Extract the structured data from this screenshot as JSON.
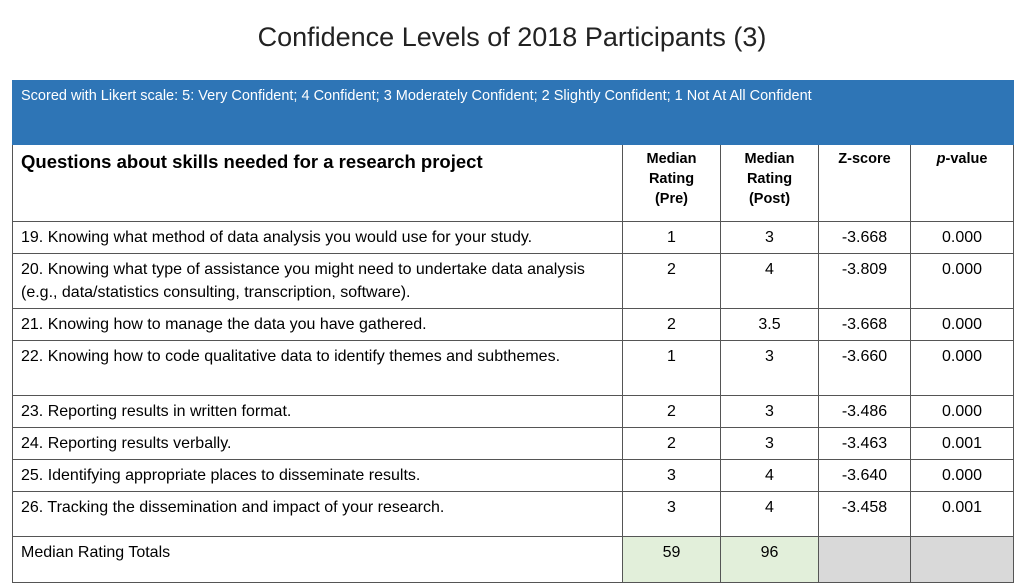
{
  "title": "Confidence Levels of 2018 Participants (3)",
  "banner": "Scored with Likert scale: 5: Very Confident; 4 Confident; 3 Moderately Confident; 2 Slightly Confident;  1 Not At All Confident",
  "headers": {
    "question": "Questions about skills needed for a research project",
    "pre": [
      "Median",
      "Rating",
      "(Pre)"
    ],
    "post": [
      "Median",
      "Rating",
      "(Post)"
    ],
    "z": "Z-score",
    "p_italic": "p",
    "p_rest": "-value"
  },
  "rows": [
    {
      "q": "19. Knowing what method of data analysis you would use for your study.",
      "pre": "1",
      "post": "3",
      "z": "-3.668",
      "p": "0.000"
    },
    {
      "q": "20. Knowing what type of assistance you might need to undertake data analysis (e.g., data/statistics consulting, transcription, software).",
      "pre": "2",
      "post": "4",
      "z": "-3.809",
      "p": "0.000"
    },
    {
      "q": "21. Knowing how to manage the data you have gathered.",
      "pre": "2",
      "post": "3.5",
      "z": "-3.668",
      "p": "0.000"
    },
    {
      "q": "22. Knowing how to code qualitative data to identify themes and subthemes.",
      "pre": "1",
      "post": "3",
      "z": "-3.660",
      "p": "0.000"
    },
    {
      "q": "23. Reporting results in written format.",
      "pre": "2",
      "post": "3",
      "z": "-3.486",
      "p": "0.000"
    },
    {
      "q": "24. Reporting results verbally.",
      "pre": "2",
      "post": "3",
      "z": "-3.463",
      "p": "0.001"
    },
    {
      "q": "25. Identifying appropriate places to disseminate results.",
      "pre": "3",
      "post": "4",
      "z": "-3.640",
      "p": "0.000"
    },
    {
      "q": "26. Tracking the dissemination and impact of your research.",
      "pre": "3",
      "post": "4",
      "z": "-3.458",
      "p": "0.001"
    }
  ],
  "totals": {
    "label": "Median Rating Totals",
    "pre": "59",
    "post": "96"
  },
  "colors": {
    "banner": "#2e75b6",
    "total_highlight": "#e2efda",
    "total_empty": "#d9d9d9"
  }
}
